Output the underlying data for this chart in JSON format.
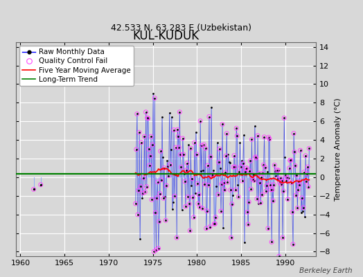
{
  "title": "KUL-KUDUK",
  "subtitle": "42.533 N, 63.283 E (Uzbekistan)",
  "ylabel": "Temperature Anomaly (°C)",
  "watermark": "Berkeley Earth",
  "xlim": [
    1959.5,
    1993.5
  ],
  "ylim": [
    -8.5,
    14.5
  ],
  "yticks": [
    -8,
    -6,
    -4,
    -2,
    0,
    2,
    4,
    6,
    8,
    10,
    12,
    14
  ],
  "xticks": [
    1960,
    1965,
    1970,
    1975,
    1980,
    1985,
    1990
  ],
  "bg_color": "#d8d8d8",
  "plot_bg_color": "#d8d8d8",
  "grid_color": "#ffffff",
  "long_term_trend_y": 0.35,
  "title_fontsize": 12,
  "subtitle_fontsize": 9,
  "legend_fontsize": 7.5,
  "early_data": [
    [
      1961.5,
      -1.3
    ],
    [
      1962.3,
      -0.8
    ]
  ],
  "seed": 123,
  "seed2": 99
}
